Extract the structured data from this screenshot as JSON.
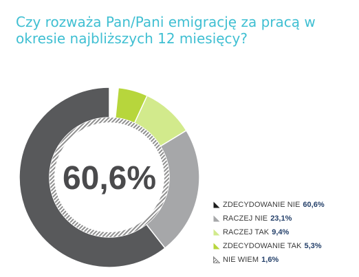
{
  "title": "Czy rozważa Pan/Pani emigrację za pracą w okresie najbliższych 12 miesięcy?",
  "chart_data": {
    "type": "pie",
    "title": "Czy rozważa Pan/Pani emigrację za pracą w okresie najbliższych 12 miesięcy?",
    "center_label": "60,6%",
    "legend_position": "bottom-right",
    "slices": [
      {
        "label": "ZDECYDOWANIE NIE",
        "value": 60.6,
        "value_label": "60,6%",
        "color": "#58595b",
        "marker": "solid"
      },
      {
        "label": "RACZEJ NIE",
        "value": 23.1,
        "value_label": "23,1%",
        "color": "#a6a7a9",
        "marker": "solid"
      },
      {
        "label": "RACZEJ TAK",
        "value": 9.4,
        "value_label": "9,4%",
        "color": "#d2ea8c",
        "marker": "solid"
      },
      {
        "label": "ZDECYDOWANIE TAK",
        "value": 5.3,
        "value_label": "5,3%",
        "color": "#b7d63c",
        "marker": "solid"
      },
      {
        "label": "NIE WIEM",
        "value": 1.6,
        "value_label": "1,6%",
        "color": "#ffffff",
        "marker": "outline"
      }
    ],
    "draw_order": [
      4,
      3,
      2,
      1,
      0
    ]
  }
}
